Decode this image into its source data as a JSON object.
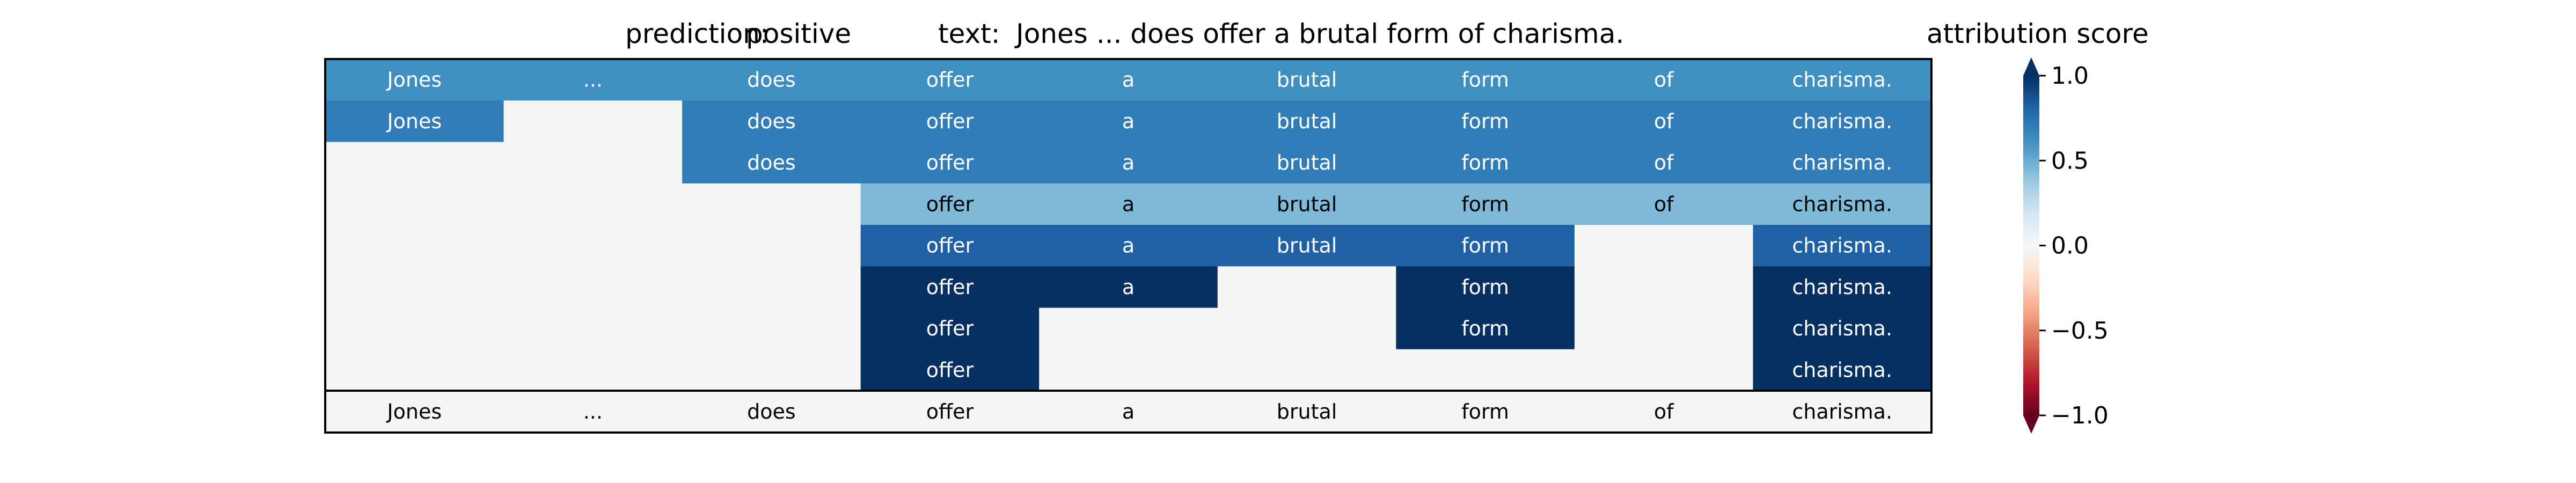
{
  "header": {
    "prediction_label": "prediction:",
    "prediction_value": "positive",
    "text_label": "text:",
    "text_value": "Jones ... does offer a brutal form of charisma."
  },
  "colorbar": {
    "title": "attribution score",
    "ticks": [
      "1.0",
      "0.5",
      "0.0",
      "−0.5",
      "−1.0"
    ],
    "tick_values": [
      1.0,
      0.5,
      0.0,
      -0.5,
      -1.0
    ],
    "colormap": "RdBu",
    "range": [
      -1.0,
      1.0
    ],
    "extend": "both"
  },
  "chart_data": {
    "type": "heatmap",
    "title": "prediction:  positive     text:  Jones ... does offer a brutal form of charisma.",
    "columns": [
      "Jones",
      "...",
      "does",
      "offer",
      "a",
      "brutal",
      "form",
      "of",
      "charisma."
    ],
    "rows": [
      {
        "tokens": [
          "Jones",
          "...",
          "does",
          "offer",
          "a",
          "brutal",
          "form",
          "of",
          "charisma."
        ],
        "scores": [
          0.62,
          0.62,
          0.62,
          0.62,
          0.62,
          0.62,
          0.62,
          0.62,
          0.62
        ]
      },
      {
        "tokens": [
          "Jones",
          "",
          "does",
          "offer",
          "a",
          "brutal",
          "form",
          "of",
          "charisma."
        ],
        "scores": [
          0.7,
          null,
          0.7,
          0.7,
          0.7,
          0.7,
          0.7,
          0.7,
          0.7
        ]
      },
      {
        "tokens": [
          "",
          "",
          "does",
          "offer",
          "a",
          "brutal",
          "form",
          "of",
          "charisma."
        ],
        "scores": [
          null,
          null,
          0.7,
          0.7,
          0.7,
          0.7,
          0.7,
          0.7,
          0.7
        ]
      },
      {
        "tokens": [
          "",
          "",
          "",
          "offer",
          "a",
          "brutal",
          "form",
          "of",
          "charisma."
        ],
        "scores": [
          null,
          null,
          null,
          0.45,
          0.45,
          0.45,
          0.45,
          0.45,
          0.45
        ]
      },
      {
        "tokens": [
          "",
          "",
          "",
          "offer",
          "a",
          "brutal",
          "form",
          "",
          "charisma."
        ],
        "scores": [
          null,
          null,
          null,
          0.82,
          0.82,
          0.82,
          0.82,
          null,
          0.82
        ]
      },
      {
        "tokens": [
          "",
          "",
          "",
          "offer",
          "a",
          "",
          "form",
          "",
          "charisma."
        ],
        "scores": [
          null,
          null,
          null,
          1.0,
          1.0,
          null,
          1.0,
          null,
          1.0
        ]
      },
      {
        "tokens": [
          "",
          "",
          "",
          "offer",
          "",
          "",
          "form",
          "",
          "charisma."
        ],
        "scores": [
          null,
          null,
          null,
          1.0,
          null,
          null,
          1.0,
          null,
          1.0
        ]
      },
      {
        "tokens": [
          "",
          "",
          "",
          "offer",
          "",
          "",
          "",
          "",
          "charisma."
        ],
        "scores": [
          null,
          null,
          null,
          1.0,
          null,
          null,
          null,
          null,
          1.0
        ]
      }
    ],
    "input_row": [
      "Jones",
      "...",
      "does",
      "offer",
      "a",
      "brutal",
      "form",
      "of",
      "charisma."
    ],
    "empty_cell_color": "#f4f6f5",
    "legend_position": "right",
    "grid": false
  }
}
